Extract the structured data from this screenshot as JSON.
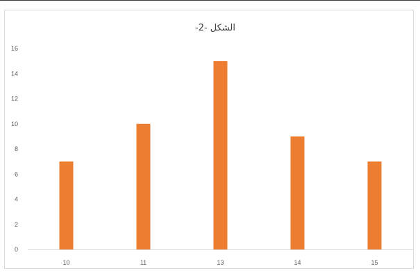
{
  "chart_data": {
    "type": "bar",
    "title": "الشكل -2-",
    "categories": [
      "10",
      "11",
      "13",
      "14",
      "15"
    ],
    "values": [
      7,
      10,
      15,
      9,
      7
    ],
    "xlabel": "",
    "ylabel": "",
    "ylim": [
      0,
      16
    ],
    "yticks": [
      "0",
      "2",
      "4",
      "6",
      "8",
      "10",
      "12",
      "14",
      "16"
    ],
    "grid": false,
    "legend": "none",
    "bar_color": "#ed7d31",
    "axis_color": "#d9d9d9"
  }
}
